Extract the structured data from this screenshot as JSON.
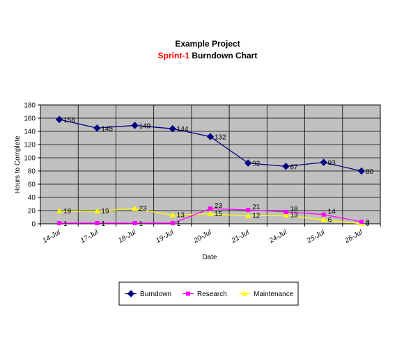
{
  "chart_data": {
    "type": "line",
    "title_line1": "Example Project",
    "title_line2_highlight": "Sprint-1",
    "title_line2_rest": " Burndown Chart",
    "title_highlight_color": "#ff0000",
    "xlabel": "Date",
    "ylabel": "Hours to Complete",
    "ylim": [
      0,
      180
    ],
    "y_ticks": [
      "0",
      "20",
      "40",
      "60",
      "80",
      "100",
      "120",
      "140",
      "160",
      "180"
    ],
    "grid": true,
    "plot_background": "#c0c0c0",
    "legend_position": "bottom",
    "categories": [
      "14-Jul",
      "17-Jul",
      "18-Jul",
      "19-Jul",
      "20-Jul",
      "21-Jul",
      "24-Jul",
      "25-Jul",
      "26-Jul"
    ],
    "series": [
      {
        "name": "Burndown",
        "color": "#000080",
        "marker": "diamond",
        "values": [
          158,
          145,
          149,
          144,
          132,
          92,
          87,
          93,
          80
        ],
        "labels": [
          "158",
          "145",
          "149",
          "144",
          "132",
          "92",
          "87",
          "93",
          "80"
        ]
      },
      {
        "name": "Research",
        "color": "#ff00ff",
        "marker": "square",
        "values": [
          1,
          1,
          1,
          1,
          23,
          21,
          18,
          14,
          3
        ],
        "labels": [
          "1",
          "1",
          "1",
          "1",
          "23",
          "21",
          "18",
          "14",
          "3"
        ]
      },
      {
        "name": "Maintenance",
        "color": "#ffff00",
        "marker": "triangle",
        "values": [
          19,
          19,
          23,
          13,
          15,
          12,
          13,
          6,
          0
        ],
        "labels": [
          "19",
          "19",
          "23",
          "13",
          "15",
          "12",
          "13",
          "6",
          "0"
        ]
      }
    ]
  }
}
